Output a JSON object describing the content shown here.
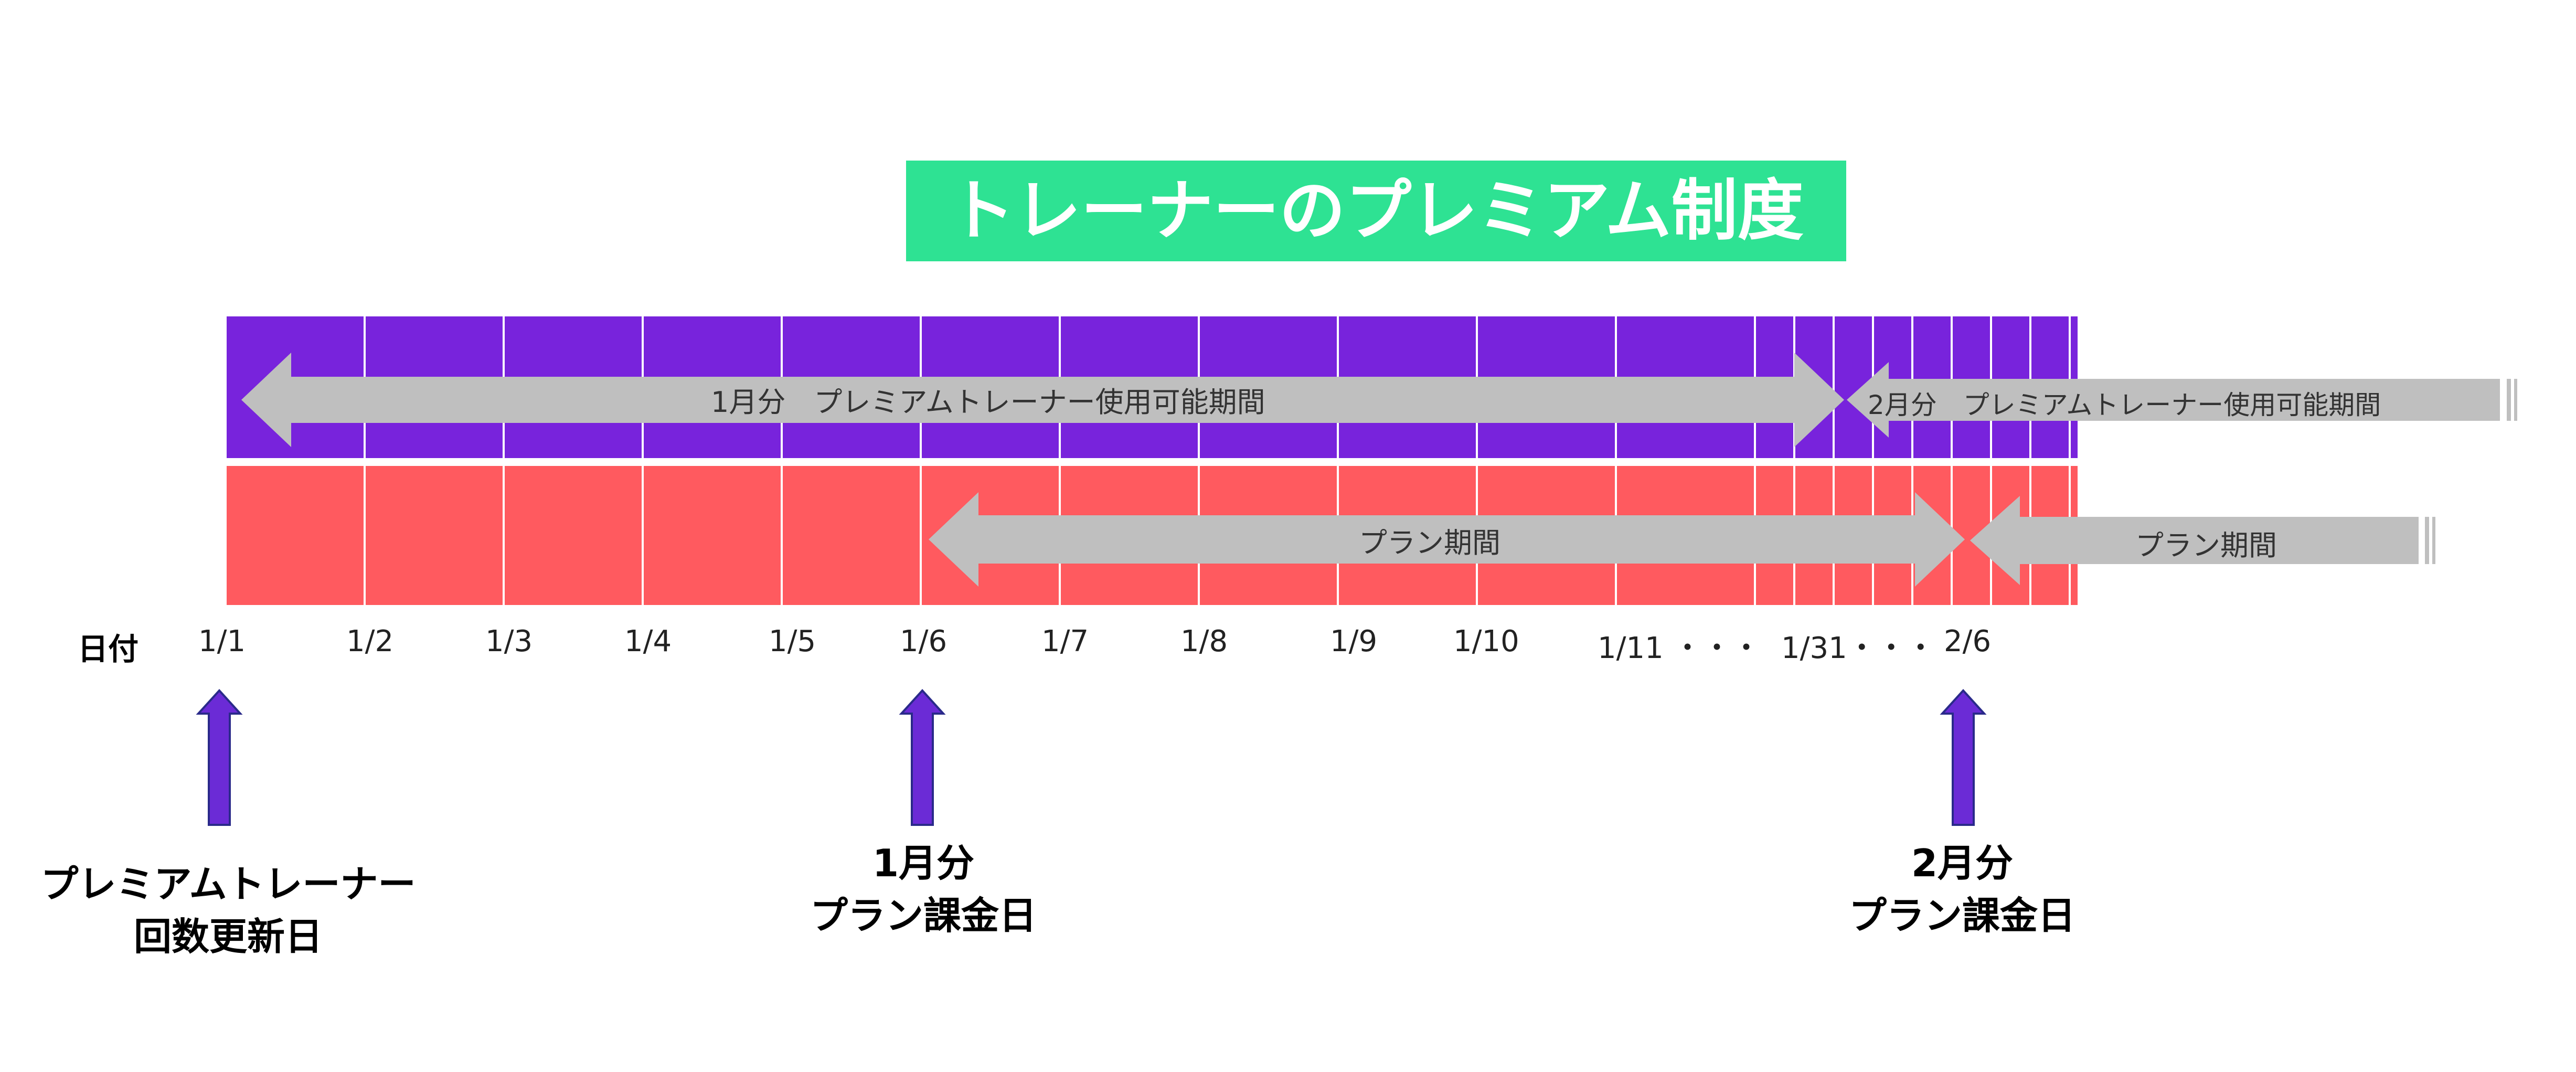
{
  "title": "トレーナーのプレミアム制度",
  "colors": {
    "title_bg": "#2ee293",
    "premium_band": "#7823dc",
    "plan_band": "#ff5a5f",
    "arrow": "#bfbfbf",
    "marker_fill": "#6b2bd6",
    "marker_stroke": "#2a2a8a"
  },
  "premium_row": {
    "arrow_1_label": "1月分　プレミアムトレーナー使用可能期間",
    "arrow_2_label": "2月分　プレミアムトレーナー使用可能期間"
  },
  "plan_row": {
    "arrow_1_label": "プラン期間",
    "arrow_2_label": "プラン期間"
  },
  "axis": {
    "label": "日付",
    "ticks": [
      "1/1",
      "1/2",
      "1/3",
      "1/4",
      "1/5",
      "1/6",
      "1/7",
      "1/8",
      "1/9",
      "1/10",
      "1/11 ・・・",
      "1/31・・・",
      "2/6"
    ]
  },
  "markers": [
    {
      "icon": "up-arrow-icon",
      "lines": [
        "プレミアムトレーナー",
        "回数更新日"
      ]
    },
    {
      "icon": "up-arrow-icon",
      "lines": [
        "1月分",
        "プラン課金日"
      ]
    },
    {
      "icon": "up-arrow-icon",
      "lines": [
        "2月分",
        "プラン課金日"
      ]
    }
  ]
}
